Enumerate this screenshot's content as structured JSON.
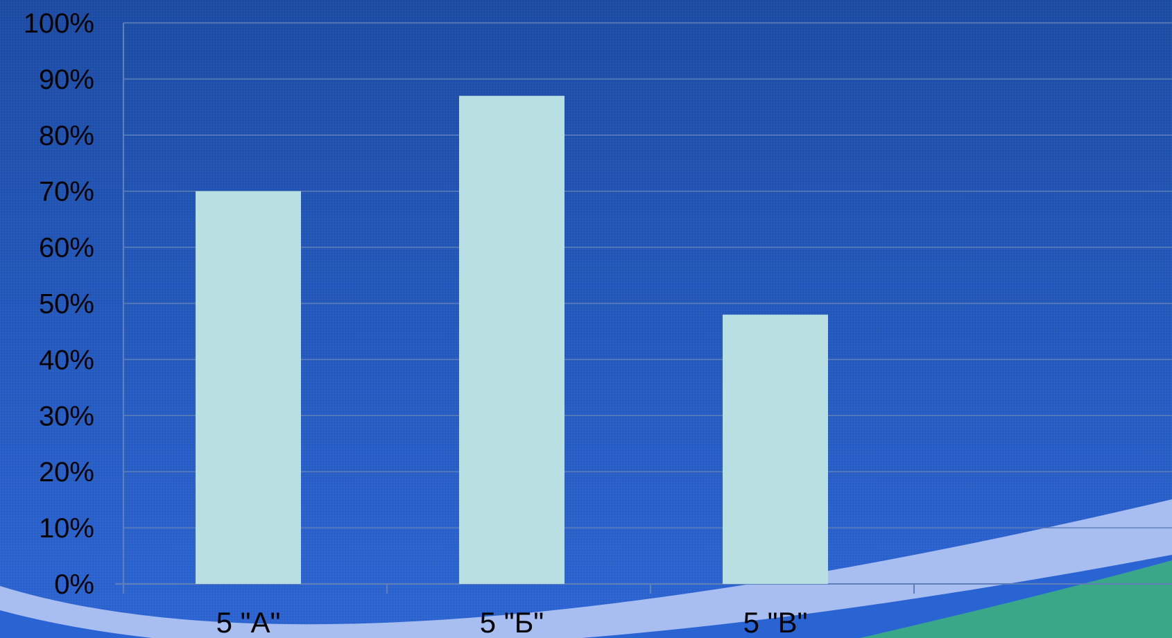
{
  "chart_data": {
    "type": "bar",
    "categories": [
      "5 \"А\"",
      "5 \"Б\"",
      "5 \"В\""
    ],
    "values": [
      70,
      87,
      48
    ],
    "ylim": [
      0,
      100
    ],
    "yticks": [
      "0%",
      "10%",
      "20%",
      "30%",
      "40%",
      "50%",
      "60%",
      "70%",
      "80%",
      "90%",
      "100%"
    ],
    "grid": true,
    "legend": "none",
    "colors": {
      "bar": "#b8dfe2",
      "gridline": "#5f7fb8",
      "background_top": "#1a4aa3",
      "background_bottom": "#2a63d2",
      "swoosh_light": "#a8bdf0",
      "swoosh_green": "#3aa888"
    }
  }
}
